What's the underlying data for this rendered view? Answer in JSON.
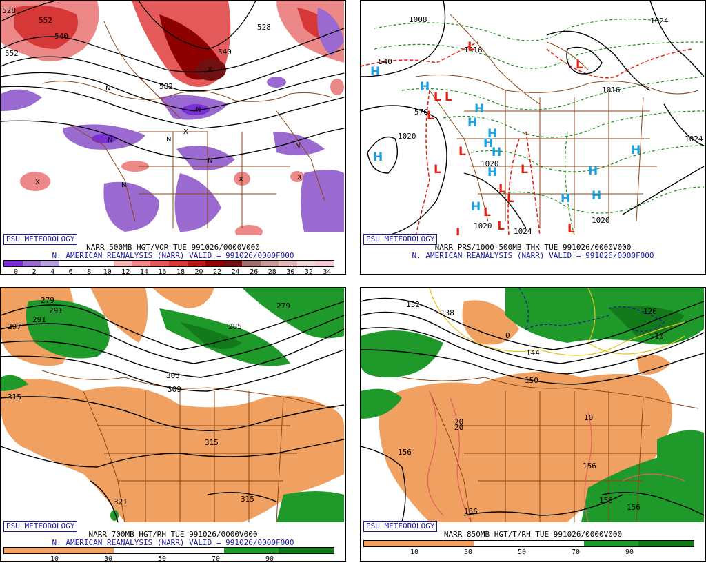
{
  "panels": [
    {
      "tag": "PSU METEOROLOGY",
      "caption_line1": "NARR 500MB HGT/VOR TUE 991026/0000V000",
      "caption_line2": "N. AMERICAN REANALYSIS (NARR) VALID = 991026/0000F000",
      "legend": [
        "0",
        "2",
        "4",
        "6",
        "8",
        "10",
        "12",
        "14",
        "16",
        "18",
        "20",
        "22",
        "24",
        "26",
        "28",
        "30",
        "32",
        "34"
      ],
      "contour_labels": [
        "552",
        "540",
        "528",
        "540",
        "552",
        "582",
        "528"
      ]
    },
    {
      "tag": "PSU METEOROLOGY",
      "caption_line1": "NARR PRS/1000-500MB THK TUE 991026/0000V000",
      "caption_line2": "N. AMERICAN REANALYSIS (NARR) VALID = 991026/0000F000",
      "contour_labels": [
        "1008",
        "1016",
        "1020",
        "1020",
        "1020",
        "1024",
        "1020",
        "1024",
        "1016",
        "570",
        "1024",
        "540"
      ],
      "high": "H",
      "low": "L"
    },
    {
      "tag": "PSU METEOROLOGY",
      "caption_line1": "NARR 700MB HGT/RH TUE 991026/0000V000",
      "caption_line2": "N. AMERICAN REANALYSIS (NARR) VALID = 991026/0000F000",
      "legend": [
        "10",
        "30",
        "50",
        "70",
        "90"
      ],
      "contour_labels": [
        "279",
        "297",
        "291",
        "291",
        "279",
        "285",
        "315",
        "303",
        "309",
        "315",
        "321",
        "315"
      ]
    },
    {
      "tag": "PSU METEOROLOGY",
      "caption_line1": "NARR 850MB HGT/T/RH TUE 991026/0000V000",
      "caption_line2": "",
      "legend": [
        "10",
        "30",
        "50",
        "70",
        "90"
      ],
      "contour_labels": [
        "132",
        "138",
        "0",
        "144",
        "150",
        "-10",
        "126",
        "20",
        "20",
        "10",
        "156",
        "156",
        "156",
        "156",
        "156"
      ]
    }
  ],
  "colors": {
    "vor_scale": [
      "#7a2fd6",
      "#9a6ad0",
      "#b8a0dc",
      "#ffffff",
      "#ffffff",
      "#ffffff",
      "#f3b8b8",
      "#ec8888",
      "#e45a5a",
      "#d63838",
      "#b81818",
      "#8c0000",
      "#701010",
      "#a07070",
      "#c89a9a",
      "#e0b8b8",
      "#f0d8d8",
      "#f7c8d6"
    ],
    "rh_scale": [
      "#f0a060",
      "#f0a060",
      "#ffffff",
      "#ffffff",
      "#1f9a2a",
      "#137a1c"
    ],
    "state_lines": "#8b4513",
    "high_marker": "#1aa0dc",
    "low_marker": "#e02010"
  }
}
